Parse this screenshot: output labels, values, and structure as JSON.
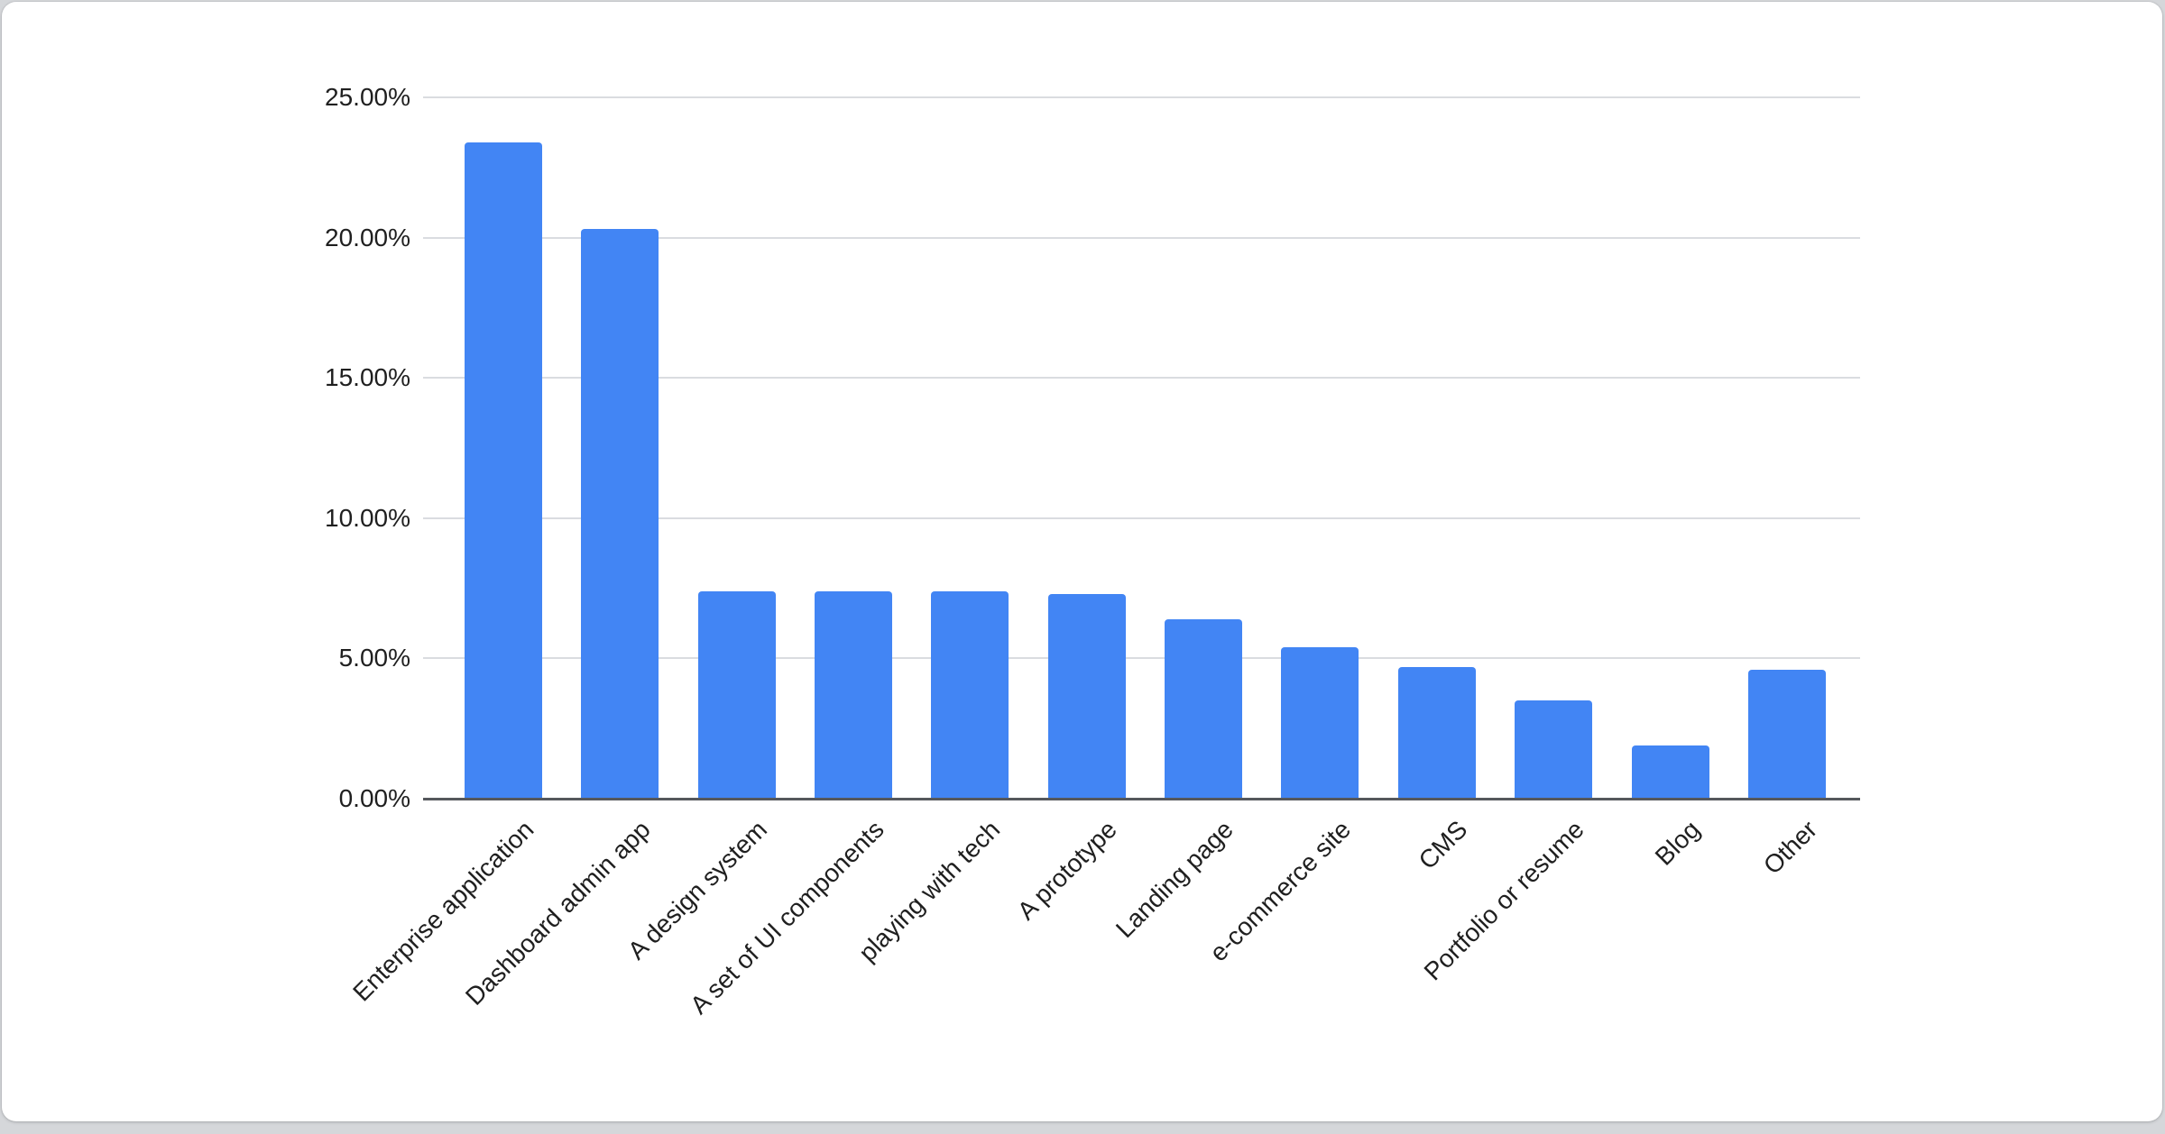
{
  "chart_data": {
    "type": "bar",
    "title": "",
    "xlabel": "",
    "ylabel": "",
    "categories": [
      "Enterprise application",
      "Dashboard admin app",
      "A design system",
      "A set of UI components",
      "playing with tech",
      "A prototype",
      "Landing page",
      "e-commerce site",
      "CMS",
      "Portfolio or resume",
      "Blog",
      "Other"
    ],
    "values": [
      23.4,
      20.3,
      7.4,
      7.4,
      7.4,
      7.3,
      6.4,
      5.4,
      4.7,
      3.5,
      1.9,
      4.6
    ],
    "value_unit": "%",
    "y_ticks": [
      "0.00%",
      "5.00%",
      "10.00%",
      "15.00%",
      "20.00%",
      "25.00%"
    ],
    "ylim": [
      0,
      25
    ],
    "grid": true,
    "legend_position": "none",
    "bar_color": "#4285f4",
    "gridline_color": "#dadce0",
    "baseline_color": "#55585c",
    "label_color": "#1f1f1f",
    "x_label_rotation_deg": -45
  },
  "canvas": {
    "outer_background": "#d5d7da",
    "card_background": "#ffffff"
  }
}
